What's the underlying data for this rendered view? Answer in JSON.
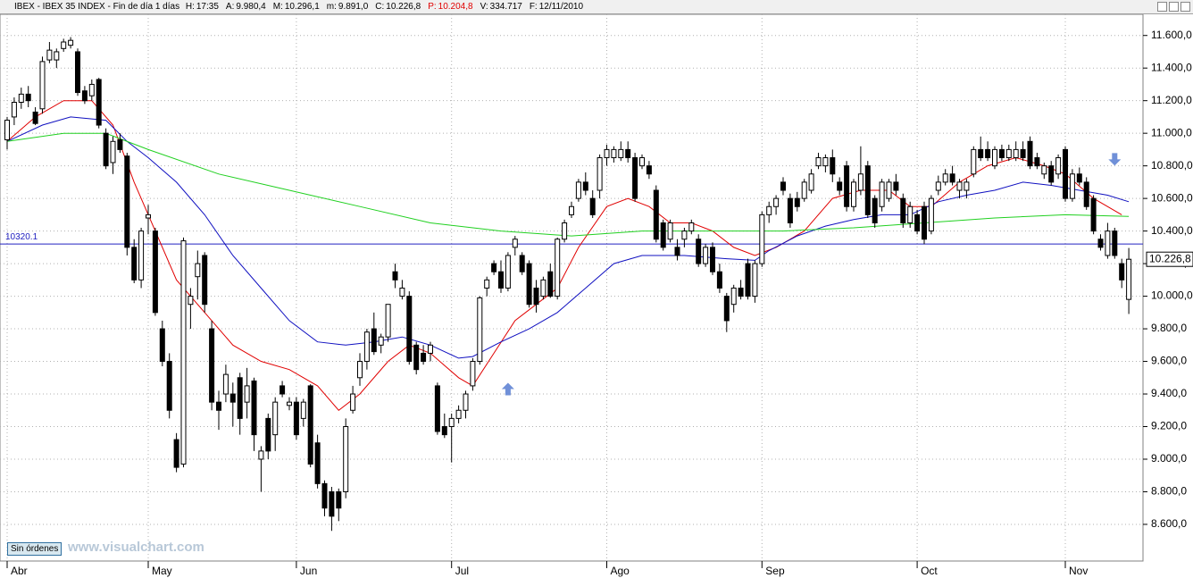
{
  "header": {
    "title": "IBEX - IBEX 35 INDEX - Fin de día 1 días",
    "items": [
      {
        "label": "H:",
        "value": "17:35"
      },
      {
        "label": "A:",
        "value": "9.980,4"
      },
      {
        "label": "M:",
        "value": "10.296,1"
      },
      {
        "label": "m:",
        "value": "9.891,0"
      },
      {
        "label": "C:",
        "value": "10.226,8"
      },
      {
        "label": "P:",
        "value": "10.204,8",
        "color": "#e00000"
      },
      {
        "label": "V:",
        "value": "334.717"
      },
      {
        "label": "F:",
        "value": "12/11/2010"
      }
    ]
  },
  "footer": {
    "button": "Sin órdenes",
    "watermark": "www.visualchart.com"
  },
  "chart_data": {
    "type": "candlestick",
    "categories": [
      "Abr",
      null,
      null,
      null,
      null,
      null,
      null,
      null,
      null,
      null,
      null,
      null,
      null,
      null,
      null,
      null,
      null,
      null,
      null,
      null,
      "May",
      null,
      null,
      null,
      null,
      null,
      null,
      null,
      null,
      null,
      null,
      null,
      null,
      null,
      null,
      null,
      null,
      null,
      null,
      null,
      null,
      "Jun",
      null,
      null,
      null,
      null,
      null,
      null,
      null,
      null,
      null,
      null,
      null,
      null,
      null,
      null,
      null,
      null,
      null,
      null,
      null,
      null,
      null,
      "Jul",
      null,
      null,
      null,
      null,
      null,
      null,
      null,
      null,
      null,
      null,
      null,
      null,
      null,
      null,
      null,
      null,
      null,
      null,
      null,
      null,
      null,
      "Ago",
      null,
      null,
      null,
      null,
      null,
      null,
      null,
      null,
      null,
      null,
      null,
      null,
      null,
      null,
      null,
      null,
      null,
      null,
      null,
      null,
      null,
      "Sep",
      null,
      null,
      null,
      null,
      null,
      null,
      null,
      null,
      null,
      null,
      null,
      null,
      null,
      null,
      null,
      null,
      null,
      null,
      null,
      null,
      null,
      "Oct",
      null,
      null,
      null,
      null,
      null,
      null,
      null,
      null,
      null,
      null,
      null,
      null,
      null,
      null,
      null,
      null,
      null,
      null,
      null,
      null,
      "Nov",
      null,
      null,
      null,
      null,
      null,
      null,
      null,
      null,
      null
    ],
    "ohlc": [
      [
        10960,
        11100,
        10900,
        11080
      ],
      [
        11100,
        11220,
        11050,
        11190
      ],
      [
        11190,
        11280,
        11150,
        11240
      ],
      [
        11240,
        11290,
        11160,
        11200
      ],
      [
        11130,
        11160,
        11050,
        11060
      ],
      [
        11150,
        11470,
        11120,
        11440
      ],
      [
        11450,
        11560,
        11430,
        11510
      ],
      [
        11450,
        11520,
        11400,
        11500
      ],
      [
        11520,
        11580,
        11500,
        11560
      ],
      [
        11540,
        11590,
        11520,
        11570
      ],
      [
        11500,
        11520,
        11230,
        11250
      ],
      [
        11260,
        11290,
        11180,
        11200
      ],
      [
        11230,
        11330,
        11200,
        11300
      ],
      [
        11330,
        11340,
        11030,
        11050
      ],
      [
        11000,
        11030,
        10780,
        10800
      ],
      [
        10820,
        10980,
        10750,
        10950
      ],
      [
        10960,
        11000,
        10880,
        10900
      ],
      [
        10860,
        10880,
        10250,
        10300
      ],
      [
        10300,
        10350,
        10080,
        10100
      ],
      [
        10100,
        10420,
        10050,
        10400
      ],
      [
        10480,
        10560,
        10380,
        10500
      ],
      [
        10400,
        10420,
        9880,
        9900
      ],
      [
        9800,
        9850,
        9570,
        9600
      ],
      [
        9600,
        9650,
        9250,
        9300
      ],
      [
        9120,
        9160,
        8920,
        8950
      ],
      [
        8970,
        10360,
        8950,
        10340
      ],
      [
        9950,
        10050,
        9800,
        10000
      ],
      [
        10120,
        10280,
        9980,
        10200
      ],
      [
        10250,
        10270,
        9900,
        9950
      ],
      [
        9800,
        9850,
        9300,
        9350
      ],
      [
        9350,
        9420,
        9180,
        9300
      ],
      [
        9400,
        9580,
        9350,
        9520
      ],
      [
        9400,
        9470,
        9200,
        9350
      ],
      [
        9500,
        9530,
        9150,
        9250
      ],
      [
        9350,
        9560,
        9250,
        9450
      ],
      [
        9480,
        9500,
        9050,
        9150
      ],
      [
        9000,
        9080,
        8800,
        9050
      ],
      [
        9250,
        9280,
        9000,
        9050
      ],
      [
        9150,
        9380,
        9050,
        9350
      ],
      [
        9450,
        9480,
        9380,
        9400
      ],
      [
        9330,
        9380,
        9300,
        9350
      ],
      [
        9350,
        9380,
        9120,
        9150
      ],
      [
        9250,
        9370,
        9200,
        9350
      ],
      [
        9450,
        9460,
        8950,
        8970
      ],
      [
        9100,
        9150,
        8820,
        8850
      ],
      [
        8850,
        8870,
        8650,
        8700
      ],
      [
        8800,
        8830,
        8560,
        8650
      ],
      [
        8800,
        8820,
        8620,
        8700
      ],
      [
        8800,
        9250,
        8760,
        9200
      ],
      [
        9300,
        9450,
        9280,
        9400
      ],
      [
        9500,
        9650,
        9450,
        9600
      ],
      [
        9600,
        9800,
        9550,
        9780
      ],
      [
        9800,
        9900,
        9640,
        9660
      ],
      [
        9700,
        9770,
        9650,
        9750
      ],
      [
        9750,
        9950,
        9720,
        9950
      ],
      [
        10150,
        10200,
        10050,
        10100
      ],
      [
        10000,
        10100,
        9980,
        10050
      ],
      [
        10000,
        10030,
        9580,
        9600
      ],
      [
        9700,
        9720,
        9520,
        9550
      ],
      [
        9650,
        9700,
        9580,
        9600
      ],
      [
        9650,
        9720,
        9600,
        9700
      ],
      [
        9450,
        9470,
        9150,
        9170
      ],
      [
        9200,
        9280,
        9130,
        9150
      ],
      [
        9200,
        9280,
        8980,
        9250
      ],
      [
        9250,
        9330,
        9220,
        9300
      ],
      [
        9300,
        9420,
        9250,
        9400
      ],
      [
        9450,
        9620,
        9420,
        9600
      ],
      [
        9600,
        10000,
        9580,
        9990
      ],
      [
        10050,
        10120,
        10000,
        10100
      ],
      [
        10200,
        10220,
        10130,
        10150
      ],
      [
        10150,
        10220,
        10020,
        10050
      ],
      [
        10050,
        10270,
        10030,
        10250
      ],
      [
        10300,
        10370,
        10250,
        10350
      ],
      [
        10250,
        10270,
        10130,
        10150
      ],
      [
        10200,
        10220,
        9930,
        9950
      ],
      [
        10050,
        10100,
        9900,
        9950
      ],
      [
        10000,
        10120,
        9980,
        10100
      ],
      [
        10150,
        10200,
        9990,
        10000
      ],
      [
        10000,
        10360,
        9980,
        10350
      ],
      [
        10350,
        10470,
        10330,
        10450
      ],
      [
        10500,
        10580,
        10480,
        10550
      ],
      [
        10600,
        10720,
        10580,
        10700
      ],
      [
        10700,
        10760,
        10620,
        10650
      ],
      [
        10600,
        10650,
        10480,
        10500
      ],
      [
        10650,
        10870,
        10600,
        10850
      ],
      [
        10850,
        10930,
        10800,
        10900
      ],
      [
        10850,
        10920,
        10820,
        10900
      ],
      [
        10850,
        10950,
        10830,
        10900
      ],
      [
        10900,
        10950,
        10820,
        10850
      ],
      [
        10850,
        10880,
        10580,
        10600
      ],
      [
        10800,
        10870,
        10780,
        10850
      ],
      [
        10800,
        10830,
        10720,
        10750
      ],
      [
        10650,
        10680,
        10330,
        10350
      ],
      [
        10450,
        10470,
        10280,
        10300
      ],
      [
        10350,
        10470,
        10330,
        10450
      ],
      [
        10300,
        10350,
        10220,
        10250
      ],
      [
        10350,
        10420,
        10300,
        10400
      ],
      [
        10400,
        10470,
        10380,
        10450
      ],
      [
        10350,
        10380,
        10180,
        10200
      ],
      [
        10200,
        10320,
        10180,
        10300
      ],
      [
        10300,
        10330,
        10130,
        10150
      ],
      [
        10150,
        10200,
        10020,
        10050
      ],
      [
        10000,
        10020,
        9780,
        9850
      ],
      [
        9950,
        10070,
        9900,
        10050
      ],
      [
        10050,
        10100,
        9980,
        10000
      ],
      [
        10200,
        10230,
        9980,
        10000
      ],
      [
        10000,
        10220,
        9960,
        10200
      ],
      [
        10200,
        10520,
        10180,
        10500
      ],
      [
        10500,
        10580,
        10450,
        10550
      ],
      [
        10550,
        10620,
        10500,
        10600
      ],
      [
        10700,
        10730,
        10620,
        10650
      ],
      [
        10600,
        10630,
        10420,
        10450
      ],
      [
        10600,
        10640,
        10520,
        10550
      ],
      [
        10600,
        10720,
        10580,
        10700
      ],
      [
        10650,
        10780,
        10630,
        10750
      ],
      [
        10800,
        10880,
        10780,
        10850
      ],
      [
        10800,
        10870,
        10760,
        10850
      ],
      [
        10850,
        10900,
        10700,
        10750
      ],
      [
        10700,
        10730,
        10620,
        10650
      ],
      [
        10800,
        10830,
        10520,
        10550
      ],
      [
        10550,
        10720,
        10520,
        10700
      ],
      [
        10650,
        10920,
        10620,
        10750
      ],
      [
        10800,
        10830,
        10480,
        10500
      ],
      [
        10600,
        10620,
        10420,
        10450
      ],
      [
        10550,
        10720,
        10520,
        10700
      ],
      [
        10600,
        10720,
        10580,
        10700
      ],
      [
        10700,
        10750,
        10620,
        10650
      ],
      [
        10600,
        10630,
        10420,
        10450
      ],
      [
        10450,
        10580,
        10420,
        10550
      ],
      [
        10500,
        10530,
        10380,
        10400
      ],
      [
        10550,
        10580,
        10320,
        10350
      ],
      [
        10400,
        10620,
        10380,
        10600
      ],
      [
        10650,
        10740,
        10620,
        10700
      ],
      [
        10700,
        10780,
        10680,
        10750
      ],
      [
        10750,
        10800,
        10680,
        10700
      ],
      [
        10650,
        10720,
        10600,
        10700
      ],
      [
        10650,
        10720,
        10600,
        10700
      ],
      [
        10750,
        10920,
        10730,
        10900
      ],
      [
        10900,
        10980,
        10830,
        10850
      ],
      [
        10900,
        10950,
        10830,
        10850
      ],
      [
        10800,
        10920,
        10780,
        10900
      ],
      [
        10900,
        10930,
        10830,
        10850
      ],
      [
        10850,
        10930,
        10830,
        10900
      ],
      [
        10850,
        10950,
        10830,
        10900
      ],
      [
        10900,
        10950,
        10830,
        10850
      ],
      [
        10950,
        10980,
        10780,
        10800
      ],
      [
        10850,
        10880,
        10780,
        10800
      ],
      [
        10750,
        10820,
        10720,
        10800
      ],
      [
        10800,
        10830,
        10680,
        10700
      ],
      [
        10750,
        10870,
        10720,
        10850
      ],
      [
        10900,
        10920,
        10580,
        10600
      ],
      [
        10600,
        10780,
        10580,
        10750
      ],
      [
        10750,
        10790,
        10680,
        10700
      ],
      [
        10700,
        10730,
        10530,
        10550
      ],
      [
        10600,
        10620,
        10380,
        10400
      ],
      [
        10350,
        10380,
        10280,
        10300
      ],
      [
        10250,
        10450,
        10230,
        10400
      ],
      [
        10400,
        10420,
        10230,
        10250
      ],
      [
        10200,
        10230,
        10050,
        10100
      ],
      [
        9980.4,
        10296.1,
        9891,
        10226.8
      ]
    ],
    "series": [
      {
        "color": "#e00000",
        "x": [
          0,
          4,
          8,
          12,
          15,
          18,
          21,
          24,
          28,
          32,
          36,
          40,
          44,
          47,
          50,
          54,
          57,
          60,
          64,
          66,
          69,
          72,
          75,
          78,
          81,
          85,
          88,
          91,
          94,
          97,
          100,
          103,
          106,
          109,
          113,
          117,
          121,
          125,
          128,
          131,
          135,
          139,
          143,
          147,
          150,
          154,
          158
        ],
        "values": [
          10950,
          11100,
          11200,
          11200,
          11050,
          10700,
          10400,
          10100,
          9900,
          9700,
          9600,
          9550,
          9450,
          9300,
          9400,
          9600,
          9700,
          9650,
          9500,
          9450,
          9650,
          9850,
          9950,
          10050,
          10300,
          10550,
          10600,
          10550,
          10450,
          10450,
          10400,
          10300,
          10250,
          10300,
          10400,
          10600,
          10650,
          10650,
          10550,
          10550,
          10700,
          10800,
          10850,
          10800,
          10750,
          10600,
          10500
        ]
      },
      {
        "color": "#1010c0",
        "x": [
          0,
          5,
          9,
          14,
          17,
          20,
          24,
          28,
          32,
          36,
          40,
          44,
          48,
          52,
          56,
          60,
          64,
          66,
          70,
          74,
          78,
          82,
          86,
          90,
          96,
          102,
          106,
          108,
          112,
          116,
          120,
          124,
          128,
          132,
          136,
          140,
          144,
          148,
          152,
          156,
          159
        ],
        "values": [
          10950,
          11050,
          11100,
          11080,
          10950,
          10850,
          10700,
          10500,
          10250,
          10050,
          9850,
          9720,
          9700,
          9720,
          9750,
          9700,
          9620,
          9630,
          9720,
          9800,
          9900,
          10050,
          10200,
          10250,
          10250,
          10230,
          10220,
          10280,
          10370,
          10430,
          10470,
          10500,
          10500,
          10580,
          10620,
          10650,
          10700,
          10680,
          10650,
          10620,
          10580
        ]
      },
      {
        "color": "#20d020",
        "x": [
          0,
          8,
          14,
          20,
          30,
          40,
          50,
          60,
          70,
          80,
          90,
          100,
          110,
          120,
          130,
          140,
          150,
          159
        ],
        "values": [
          10950,
          11000,
          11000,
          10900,
          10750,
          10650,
          10550,
          10450,
          10400,
          10370,
          10400,
          10400,
          10400,
          10420,
          10450,
          10480,
          10500,
          10490
        ]
      }
    ],
    "reference_line": {
      "value": 10320.1,
      "label": "10320.1",
      "color": "#2020c0"
    },
    "last_price_label": "10.226,8",
    "signals": [
      {
        "direction": "up",
        "x": 71,
        "y": 9430
      },
      {
        "direction": "down",
        "x": 157,
        "y": 10840
      }
    ],
    "ylim": [
      8375,
      11730
    ],
    "yticks": [
      {
        "value": 8600,
        "label": "8.600,0"
      },
      {
        "value": 8800,
        "label": "8.800,0"
      },
      {
        "value": 9000,
        "label": "9.000,0"
      },
      {
        "value": 9200,
        "label": "9.200,0"
      },
      {
        "value": 9400,
        "label": "9.400,0"
      },
      {
        "value": 9600,
        "label": "9.600,0"
      },
      {
        "value": 9800,
        "label": "9.800,0"
      },
      {
        "value": 10000,
        "label": "10.000,0"
      },
      {
        "value": 10200,
        "label": "10.200,0"
      },
      {
        "value": 10400,
        "label": "10.400,0"
      },
      {
        "value": 10600,
        "label": "10.600,0"
      },
      {
        "value": 10800,
        "label": "10.800,0"
      },
      {
        "value": 11000,
        "label": "11.000,0"
      },
      {
        "value": 11200,
        "label": "11.200,0"
      },
      {
        "value": 11400,
        "label": "11.400,0"
      },
      {
        "value": 11600,
        "label": "11.600,0"
      }
    ],
    "grid": true,
    "up_color": "#ffffff",
    "down_color": "#000000"
  }
}
